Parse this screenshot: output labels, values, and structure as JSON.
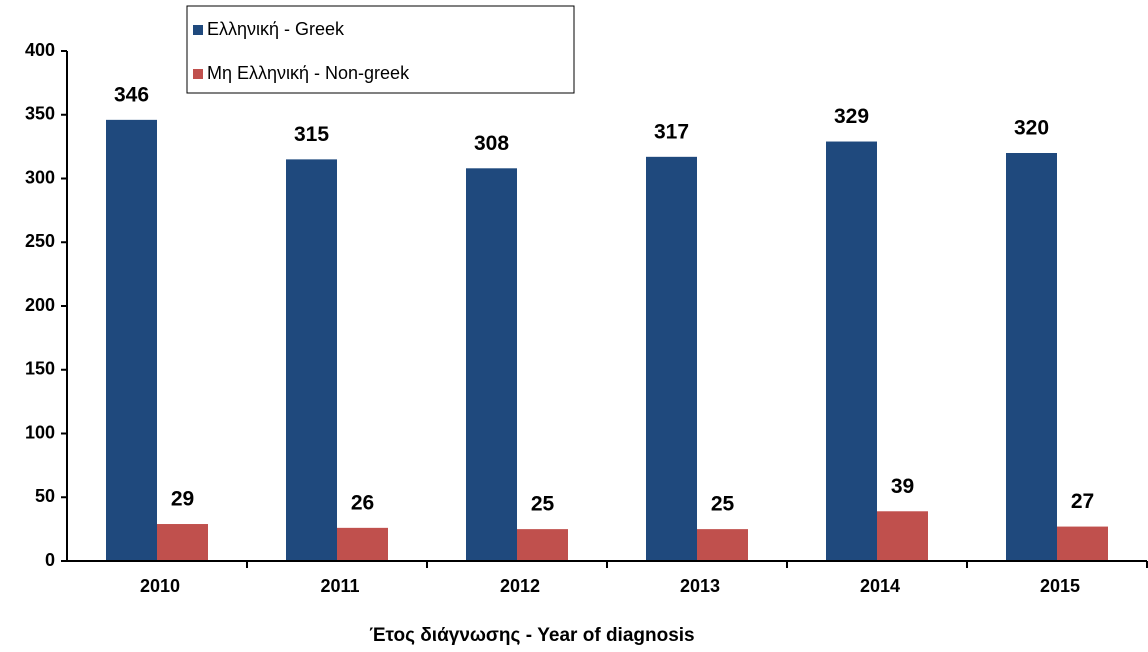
{
  "chart_data": {
    "type": "bar",
    "x_label": "Έτος διάγνωσης - Year of diagnosis",
    "categories": [
      "2010",
      "2011",
      "2012",
      "2013",
      "2014",
      "2015"
    ],
    "series": [
      {
        "name": "Ελληνική - Greek",
        "color": "#1F497D",
        "values": [
          346,
          315,
          308,
          317,
          329,
          320
        ]
      },
      {
        "name": "Μη Ελληνική - Non-greek",
        "color": "#C0504D",
        "values": [
          29,
          26,
          25,
          25,
          39,
          27
        ]
      }
    ],
    "ylim": [
      0,
      400
    ],
    "yticks": [
      0,
      50,
      100,
      150,
      200,
      250,
      300,
      350,
      400
    ],
    "grid": false
  }
}
